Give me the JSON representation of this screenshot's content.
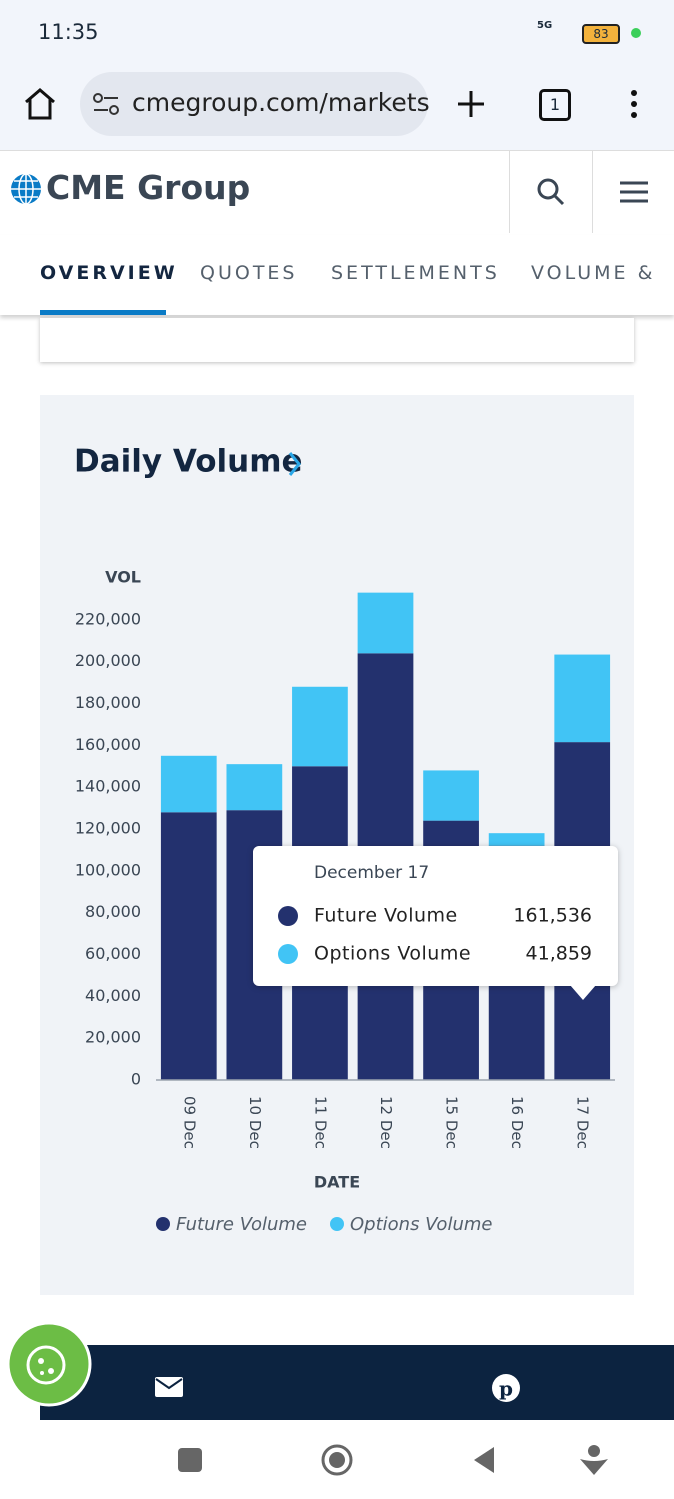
{
  "status_bar": {
    "time": "11:35",
    "network": "5G",
    "battery": "83"
  },
  "browser": {
    "url": "cmegroup.com/markets",
    "tab_count": "1"
  },
  "site": {
    "logo": "CME Group",
    "tabs": [
      "OVERVIEW",
      "QUOTES",
      "SETTLEMENTS",
      "VOLUME &"
    ]
  },
  "chart_data": {
    "type": "stacked_bar",
    "title": "Daily Volume",
    "y_label": "VOL",
    "x_label": "DATE",
    "categories": [
      "09 Dec",
      "10 Dec",
      "11 Dec",
      "12 Dec",
      "15 Dec",
      "16 Dec",
      "17 Dec"
    ],
    "series": [
      {
        "name": "Future Volume",
        "color": "#23316e",
        "values": [
          128000,
          129000,
          150000,
          204000,
          124000,
          112000,
          161536
        ],
        "value_labels": [
          null,
          null,
          null,
          null,
          null,
          null,
          "161,536"
        ]
      },
      {
        "name": "Options Volume",
        "color": "#41c4f5",
        "values": [
          27000,
          22000,
          38000,
          29000,
          24000,
          6000,
          41859
        ],
        "value_labels": [
          null,
          null,
          null,
          null,
          null,
          null,
          "41,859"
        ]
      }
    ],
    "ylim": [
      0,
      240000
    ],
    "yticks": [
      0,
      {
        "value": 20000,
        "label": "20,000"
      },
      {
        "value": 40000,
        "label": "40,000"
      },
      {
        "value": 60000,
        "label": "60,000"
      },
      {
        "value": 80000,
        "label": "80,000"
      },
      {
        "value": 100000,
        "label": "100,000"
      },
      {
        "value": 120000,
        "label": "120,000"
      },
      {
        "value": 140000,
        "label": "140,000"
      },
      {
        "value": 160000,
        "label": "160,000"
      },
      {
        "value": 180000,
        "label": "180,000"
      },
      {
        "value": 200000,
        "label": "200,000"
      },
      {
        "value": 220000,
        "label": "220,000"
      }
    ],
    "legend": "bottom",
    "tooltip": {
      "title": "December 17",
      "index": 6
    }
  }
}
